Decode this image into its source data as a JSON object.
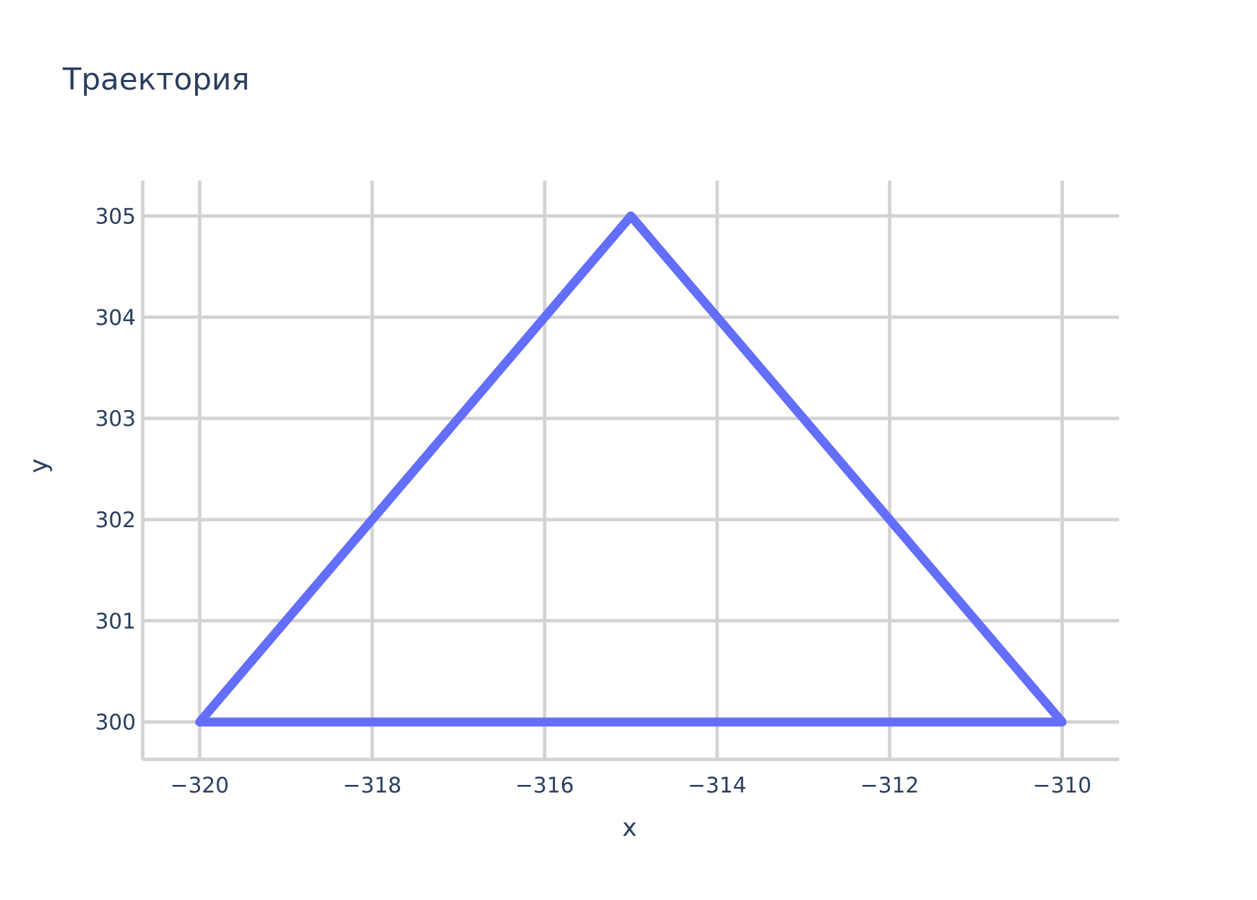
{
  "chart_data": {
    "type": "line",
    "title": "Траектория",
    "xlabel": "x",
    "ylabel": "y",
    "xlim": [
      -320.66,
      -309.34
    ],
    "ylim": [
      299.63,
      305.35
    ],
    "xticks": [
      -320,
      -318,
      -316,
      -314,
      -312,
      -310
    ],
    "xtick_labels": [
      "−320",
      "−318",
      "−316",
      "−314",
      "−312",
      "−310"
    ],
    "yticks": [
      300,
      301,
      302,
      303,
      304,
      305
    ],
    "ytick_labels": [
      "300",
      "301",
      "302",
      "303",
      "304",
      "305"
    ],
    "grid": true,
    "series": [
      {
        "x": [
          -320,
          -315,
          -310,
          -320
        ],
        "y": [
          300,
          305,
          300,
          300
        ],
        "color": "#636efa"
      }
    ]
  },
  "colors": {
    "text": "#2a3f5f",
    "grid": "#d3d3d3",
    "axis": "#d3d3d3",
    "background": "#ffffff"
  }
}
